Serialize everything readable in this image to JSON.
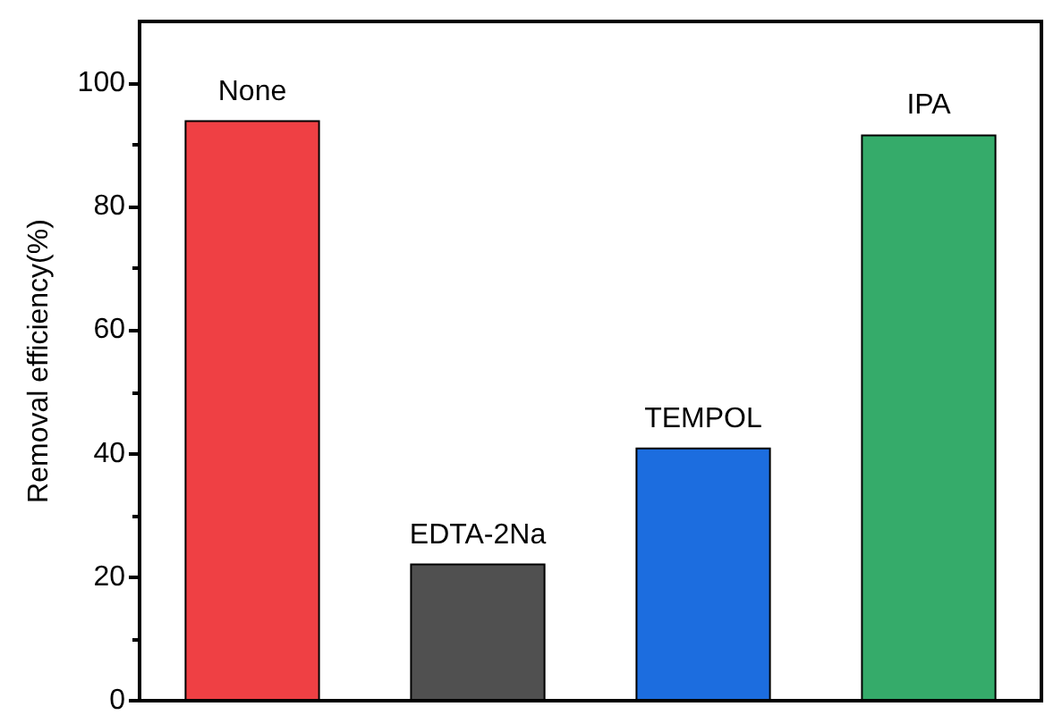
{
  "chart_data": {
    "type": "bar",
    "ylabel": "Removal efficiency(%)",
    "categories": [
      "None",
      "EDTA-2Na",
      "TEMPOL",
      "IPA"
    ],
    "values": [
      94.0,
      22.2,
      41.0,
      91.7
    ],
    "colors": [
      "#ef4044",
      "#505050",
      "#1c6ddf",
      "#35ab6a"
    ],
    "ylim": [
      0,
      110
    ],
    "yticks": [
      0,
      20,
      40,
      60,
      80,
      100
    ],
    "grid": false,
    "tick_labels": "y"
  }
}
